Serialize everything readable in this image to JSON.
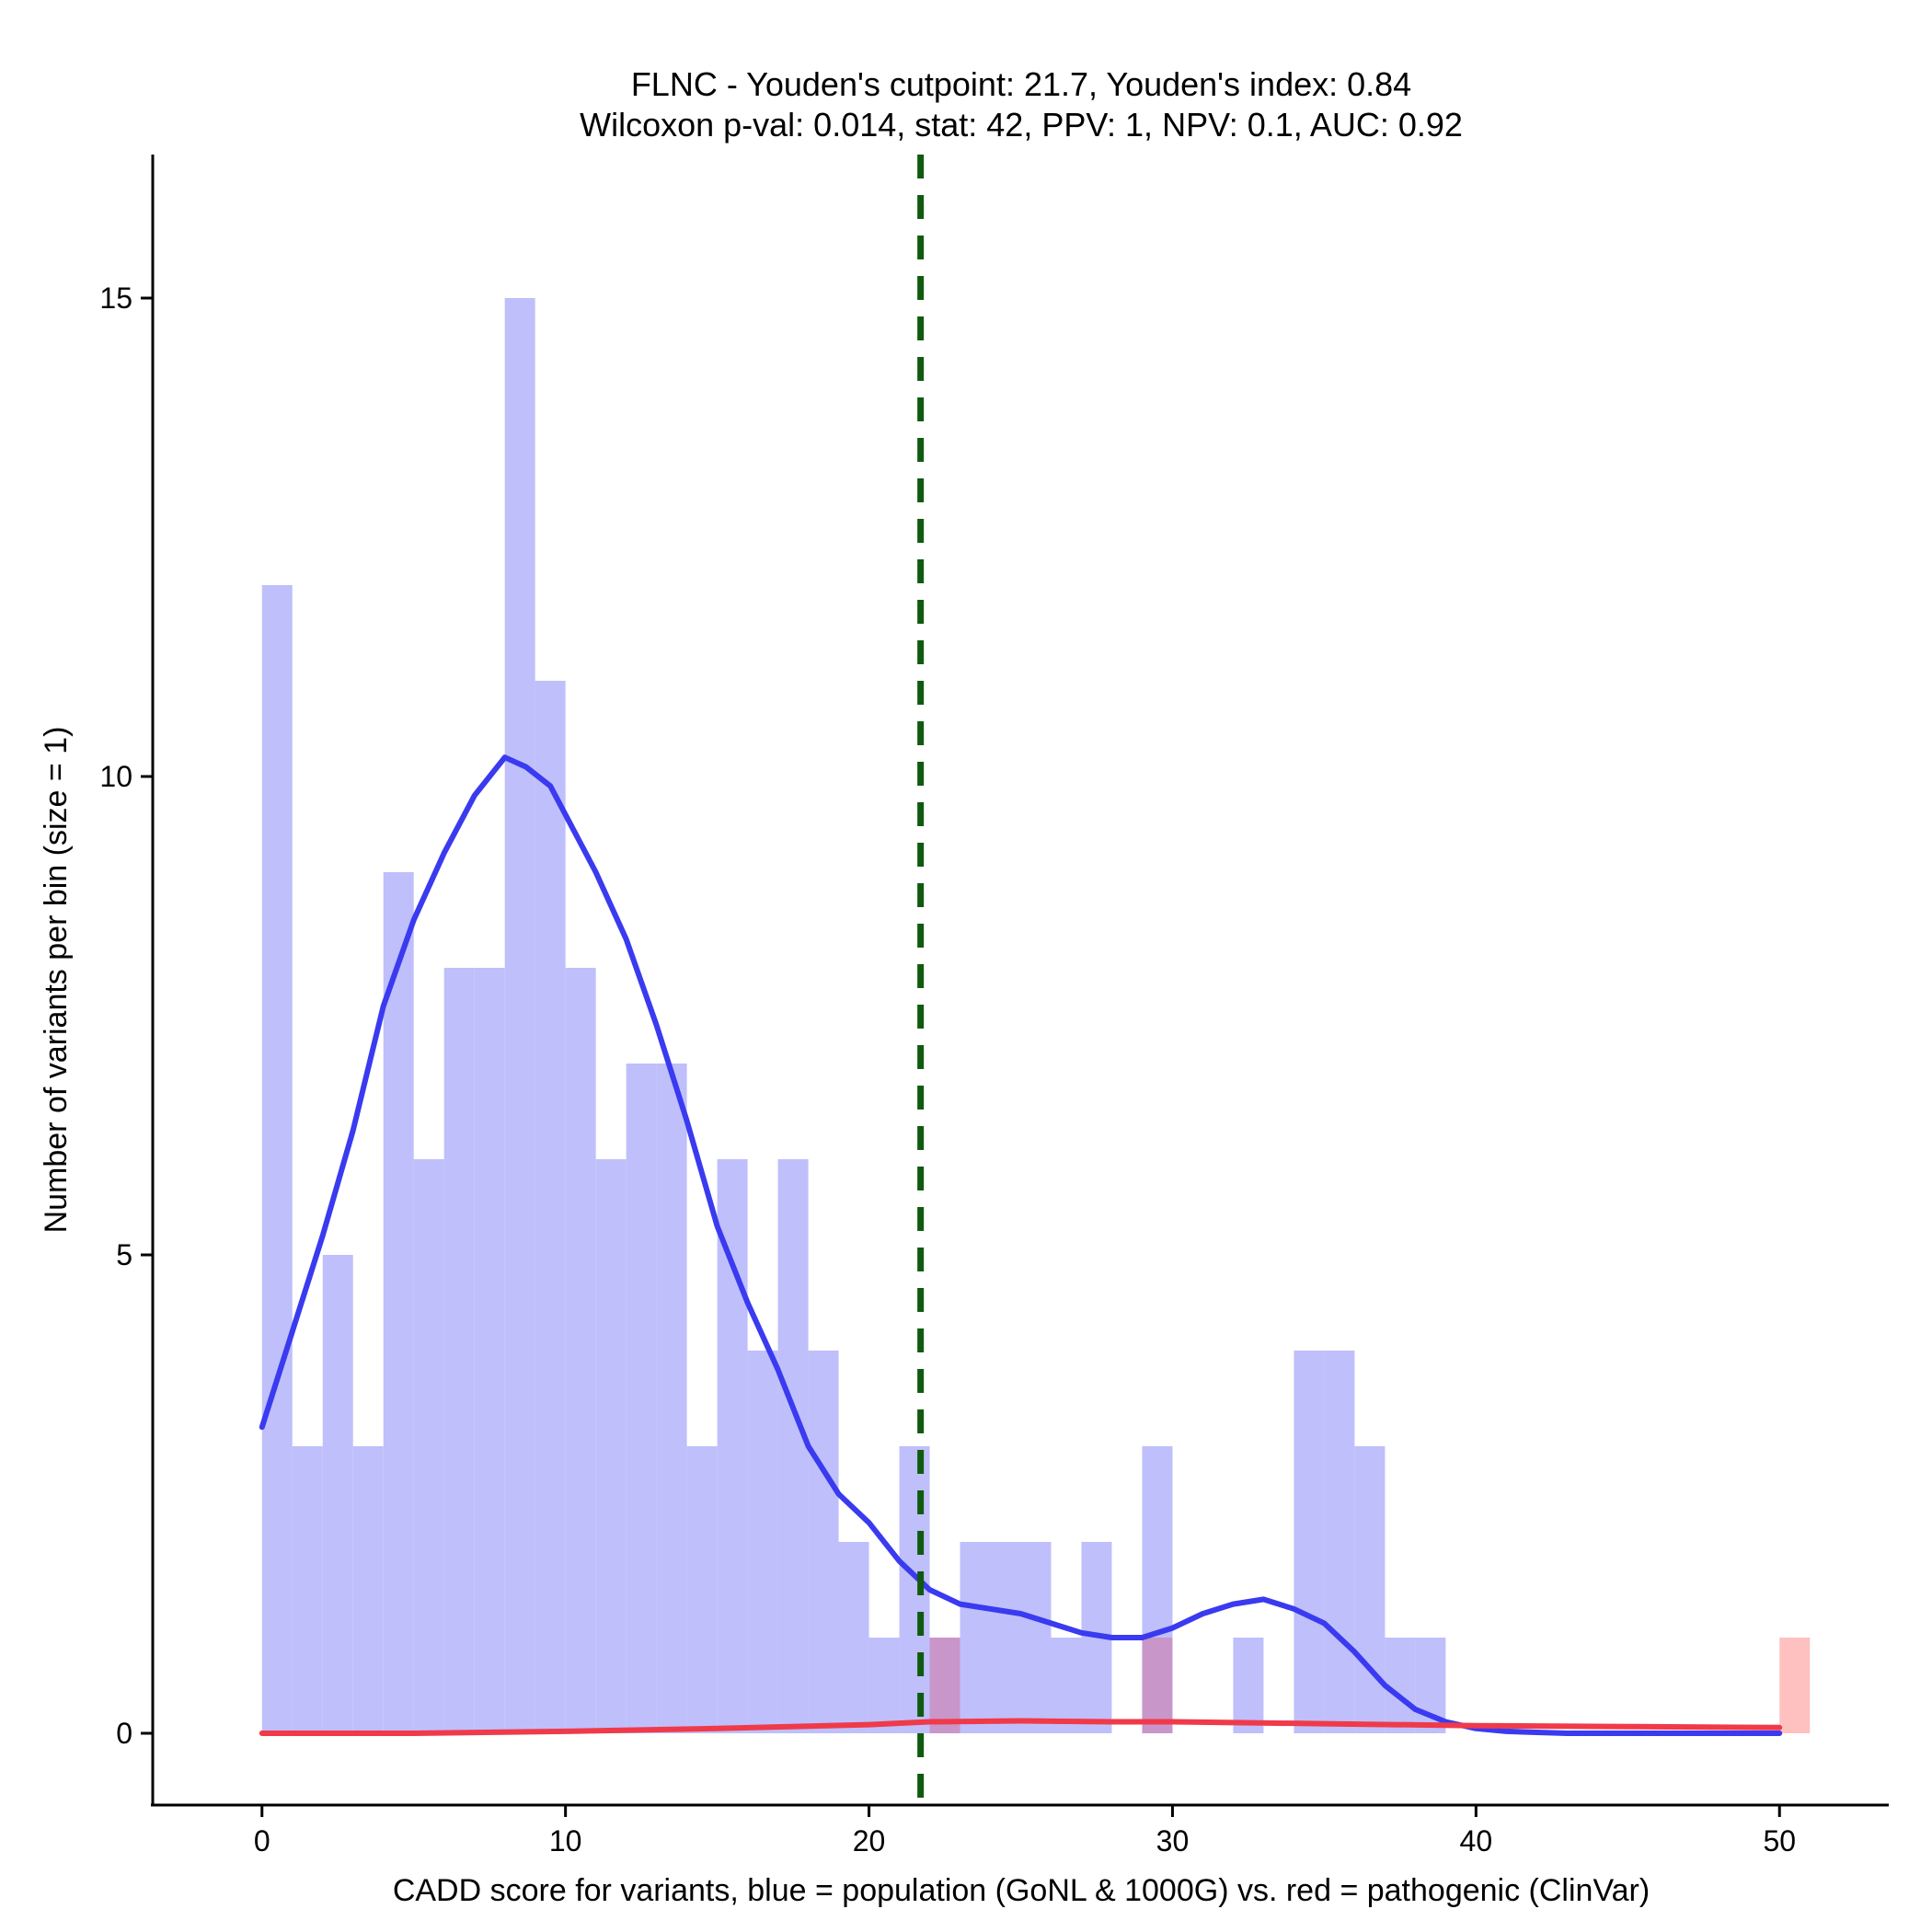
{
  "chart_data": {
    "type": "bar",
    "title_line1": "FLNC - Youden's cutpoint: 21.7, Youden's index: 0.84",
    "title_line2": "Wilcoxon p-val: 0.014, stat: 42, PPV: 1, NPV: 0.1, AUC: 0.92",
    "xlabel": "CADD score for variants, blue = population (GoNL & 1000G) vs. red = pathogenic (ClinVar)",
    "ylabel": "Number of variants per bin (size = 1)",
    "xlim": [
      -3.6,
      53.6
    ],
    "ylim": [
      -0.75,
      16.5
    ],
    "xticks": [
      0,
      10,
      20,
      30,
      40,
      50
    ],
    "yticks": [
      0,
      5,
      10,
      15
    ],
    "bin_size": 1,
    "cutpoint": 21.7,
    "colors": {
      "population_bar": "#bfbffb",
      "pathogenic_bar": "#ffc0c0",
      "overlap_bar": "#c996c9",
      "population_line": "#3a3af0",
      "pathogenic_line": "#f03a4a",
      "cutpoint_line": "#0f5a0f"
    },
    "series": [
      {
        "name": "population (GoNL & 1000G)",
        "bin_starts": [
          0,
          1,
          2,
          3,
          4,
          5,
          6,
          7,
          8,
          9,
          10,
          11,
          12,
          13,
          14,
          15,
          16,
          17,
          18,
          19,
          20,
          21,
          22,
          23,
          24,
          25,
          26,
          27,
          28,
          29,
          30,
          31,
          32,
          33,
          34,
          35,
          36,
          37,
          38
        ],
        "values": [
          12,
          3,
          5,
          3,
          9,
          6,
          8,
          8,
          15,
          11,
          8,
          6,
          7,
          7,
          3,
          6,
          4,
          6,
          4,
          2,
          1,
          3,
          1,
          2,
          2,
          2,
          1,
          2,
          0,
          3,
          0,
          0,
          1,
          0,
          4,
          4,
          3,
          1,
          1
        ]
      },
      {
        "name": "pathogenic (ClinVar)",
        "bin_starts": [
          22,
          29,
          50
        ],
        "values": [
          1,
          1,
          1
        ]
      }
    ],
    "density_population": {
      "x": [
        0,
        1,
        2,
        3,
        4,
        5,
        6,
        7,
        8,
        8.7,
        9.5,
        10,
        11,
        12,
        13,
        14,
        15,
        16,
        17,
        18,
        19,
        20,
        21,
        22,
        23,
        24,
        25,
        26,
        27,
        28,
        29,
        30,
        31,
        32,
        33,
        34,
        35,
        36,
        37,
        38,
        39,
        40,
        41,
        42,
        43,
        44,
        45,
        46,
        47,
        48,
        49,
        50
      ],
      "y": [
        3.2,
        4.2,
        5.2,
        6.3,
        7.6,
        8.5,
        9.2,
        9.8,
        10.2,
        10.1,
        9.9,
        9.6,
        9.0,
        8.3,
        7.4,
        6.4,
        5.3,
        4.5,
        3.8,
        3.0,
        2.5,
        2.2,
        1.8,
        1.5,
        1.35,
        1.3,
        1.25,
        1.15,
        1.05,
        1.0,
        1.0,
        1.1,
        1.25,
        1.35,
        1.4,
        1.3,
        1.15,
        0.85,
        0.5,
        0.25,
        0.12,
        0.05,
        0.02,
        0.01,
        0,
        0,
        0,
        0,
        0,
        0,
        0,
        0
      ]
    },
    "density_pathogenic": {
      "x": [
        0,
        5,
        10,
        15,
        20,
        22,
        25,
        28,
        30,
        35,
        40,
        45,
        50
      ],
      "y": [
        0,
        0,
        0.02,
        0.05,
        0.09,
        0.12,
        0.13,
        0.12,
        0.12,
        0.1,
        0.08,
        0.07,
        0.06
      ]
    }
  }
}
